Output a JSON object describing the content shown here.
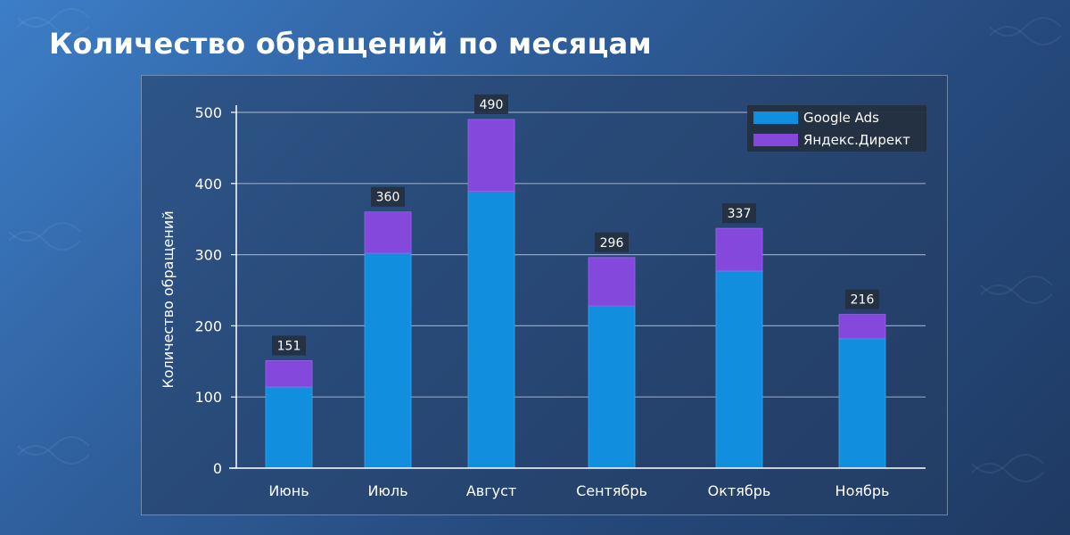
{
  "page": {
    "title": "Количество обращений по месяцам"
  },
  "colors": {
    "google": "#118fde",
    "yandex": "#8448dc",
    "grid": "#a9b4c6",
    "axis": "#ffffff",
    "label_bg": "#24303f"
  },
  "chart_data": {
    "type": "bar",
    "stacked": true,
    "title": "",
    "xlabel": "",
    "ylabel": "Количество обращений",
    "categories": [
      "Июнь",
      "Июль",
      "Август",
      "Сентябрь",
      "Октябрь",
      "Ноябрь"
    ],
    "series": [
      {
        "name": "Google Ads",
        "color": "#118fde",
        "values": [
          114,
          302,
          389,
          228,
          277,
          182
        ]
      },
      {
        "name": "Яндекс.Директ",
        "color": "#8448dc",
        "values": [
          37,
          58,
          101,
          68,
          60,
          34
        ]
      }
    ],
    "totals": [
      151,
      360,
      490,
      296,
      337,
      216
    ],
    "ylim": [
      0,
      500
    ],
    "yticks": [
      0,
      100,
      200,
      300,
      400,
      500
    ],
    "grid": true,
    "legend": "top-right"
  }
}
